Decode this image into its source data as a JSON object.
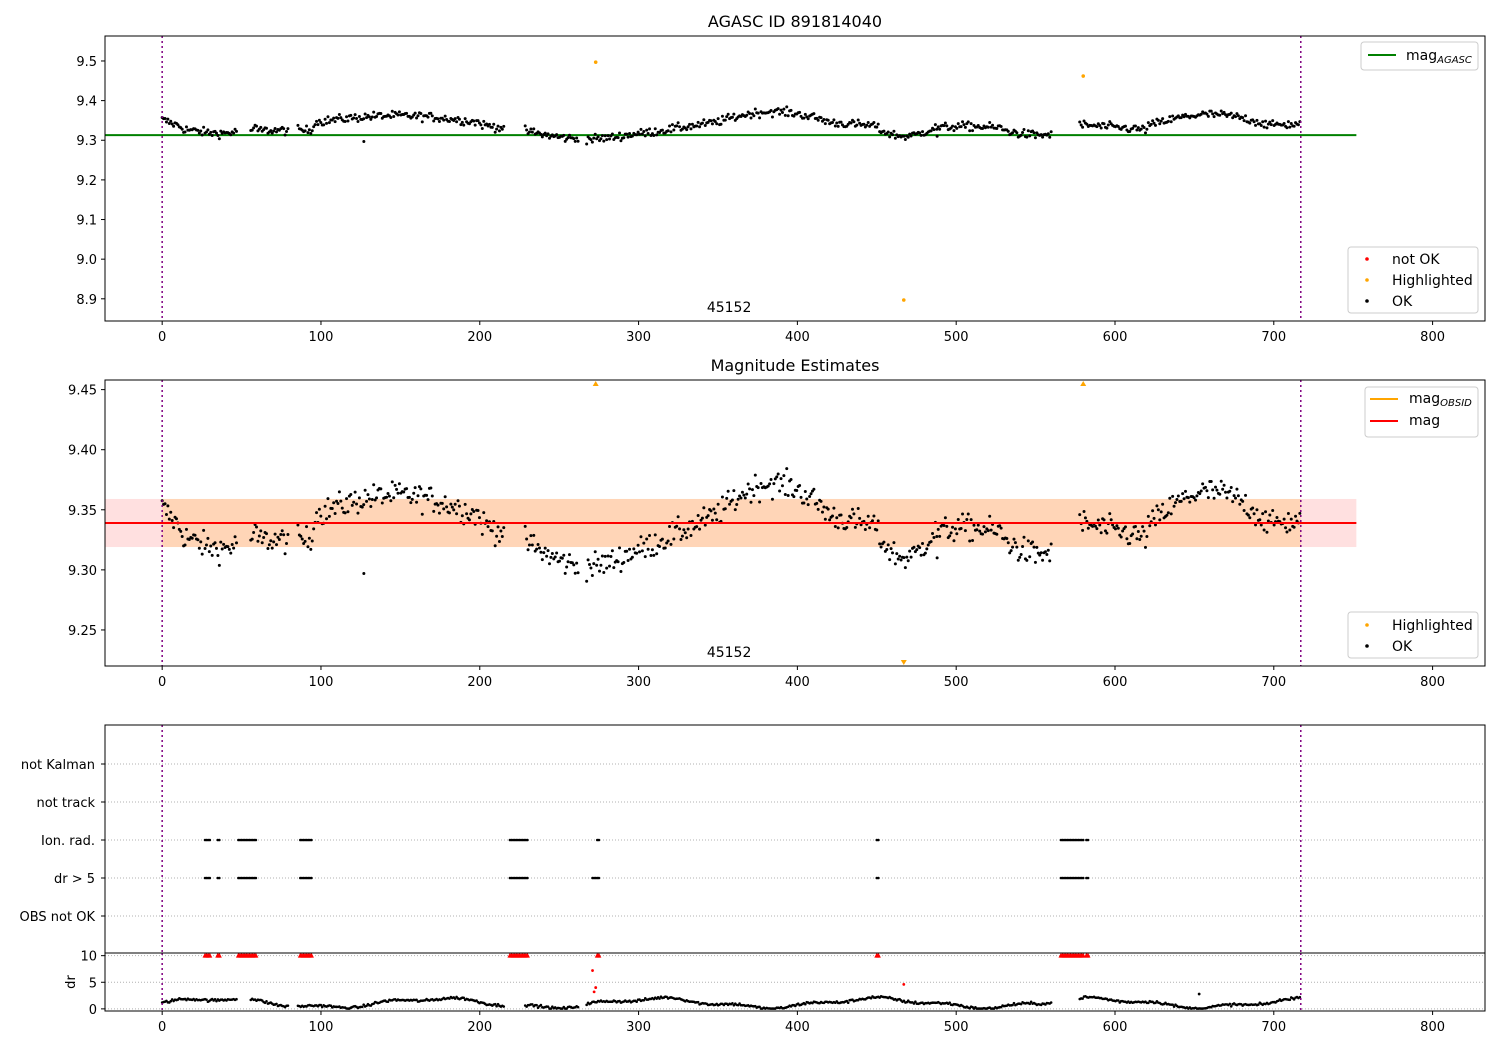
{
  "chart_data": [
    {
      "name": "agasc-panel",
      "type": "scatter",
      "title": "AGASC ID 891814040",
      "xlim": [
        -36,
        833
      ],
      "ylim": [
        8.844,
        9.563
      ],
      "x_ticks": [
        0,
        100,
        200,
        300,
        400,
        500,
        600,
        700,
        800
      ],
      "y_ticks": [
        8.9,
        9.0,
        9.1,
        9.2,
        9.3,
        9.4,
        9.5
      ],
      "y_tick_labels": [
        "8.9",
        "9.0",
        "9.1",
        "9.2",
        "9.3",
        "9.4",
        "9.5"
      ],
      "obsid_label": "45152",
      "obsid_label_x": 357,
      "obsid_boundaries": [
        0,
        717
      ],
      "reference_line": {
        "name": "mag_AGASC",
        "y": 9.313,
        "x_range": [
          -36,
          752
        ],
        "color": "#008000"
      },
      "highlighted_points": [
        {
          "x": 273,
          "y": 9.497
        },
        {
          "x": 580,
          "y": 9.462
        },
        {
          "x": 467,
          "y": 8.897
        }
      ],
      "ok_series_description": "black points, mag trend",
      "legend_lines": [
        {
          "label": "mag",
          "sub": "AGASC",
          "color": "#008000"
        }
      ],
      "legend_points": [
        {
          "label": "not OK",
          "color": "#ff0000"
        },
        {
          "label": "Highlighted",
          "color": "#ffa500"
        },
        {
          "label": "OK",
          "color": "#000000"
        }
      ]
    },
    {
      "name": "estimates-panel",
      "type": "scatter",
      "title": "Magnitude Estimates",
      "xlim": [
        -36,
        833
      ],
      "ylim": [
        9.22,
        9.458
      ],
      "x_ticks": [
        0,
        100,
        200,
        300,
        400,
        500,
        600,
        700,
        800
      ],
      "y_ticks": [
        9.25,
        9.3,
        9.35,
        9.4,
        9.45
      ],
      "y_tick_labels": [
        "9.25",
        "9.30",
        "9.35",
        "9.40",
        "9.45"
      ],
      "obsid_label": "45152",
      "obsid_label_x": 357,
      "obsid_boundaries": [
        0,
        717
      ],
      "mag_line": {
        "y": 9.339,
        "color": "#ff0000"
      },
      "mag_band": {
        "y_low": 9.319,
        "y_high": 9.359,
        "x_range": [
          -36,
          752
        ]
      },
      "obsid_band": {
        "y_low": 9.319,
        "y_high": 9.359,
        "x_range": [
          0,
          717
        ]
      },
      "highlighted_markers": [
        {
          "x": 273,
          "direction": "up"
        },
        {
          "x": 580,
          "direction": "up"
        },
        {
          "x": 467,
          "direction": "down"
        }
      ],
      "legend_lines": [
        {
          "label": "mag",
          "sub": "OBSID",
          "color": "#ffa500"
        },
        {
          "label": "mag",
          "sub": "",
          "color": "#ff0000"
        }
      ],
      "legend_points": [
        {
          "label": "Highlighted",
          "color": "#ffa500"
        },
        {
          "label": "OK",
          "color": "#000000"
        }
      ]
    },
    {
      "name": "flags-panel",
      "type": "scatter",
      "categories": [
        "not Kalman",
        "not track",
        "Ion. rad.",
        "dr > 5",
        "OBS not OK"
      ],
      "xlim": [
        -36,
        833
      ],
      "obsid_boundaries": [
        0,
        717
      ],
      "flag_clusters": {
        "Ion. rad.": [
          [
            27,
            30
          ],
          [
            35,
            36
          ],
          [
            48,
            59
          ],
          [
            87,
            94
          ],
          [
            219,
            230
          ],
          [
            274,
            275
          ],
          [
            450,
            451
          ],
          [
            566,
            580
          ],
          [
            582,
            583
          ]
        ],
        "dr > 5": [
          [
            27,
            30
          ],
          [
            35,
            36
          ],
          [
            48,
            59
          ],
          [
            87,
            94
          ],
          [
            219,
            230
          ],
          [
            271,
            275
          ],
          [
            450,
            451
          ],
          [
            566,
            580
          ],
          [
            582,
            583
          ]
        ],
        "not Kalman": [],
        "not track": [],
        "OBS not OK": []
      }
    },
    {
      "name": "dr-panel",
      "type": "scatter",
      "ylabel": "dr",
      "xlim": [
        -36,
        833
      ],
      "ylim": [
        -0.4,
        10.5
      ],
      "x_ticks": [
        0,
        100,
        200,
        300,
        400,
        500,
        600,
        700,
        800
      ],
      "y_ticks": [
        0,
        5,
        10
      ],
      "y_tick_labels": [
        "0",
        "5",
        "10"
      ],
      "obsid_boundaries": [
        0,
        717
      ],
      "clipped_points_red": [
        [
          27,
          30
        ],
        [
          35,
          36
        ],
        [
          48,
          59
        ],
        [
          87,
          94
        ],
        [
          219,
          230
        ],
        [
          274,
          275
        ],
        [
          450,
          451
        ],
        [
          566,
          580
        ],
        [
          582,
          583
        ]
      ],
      "highlighted_points_red": [
        {
          "x": 271,
          "y": 7.2
        },
        {
          "x": 272,
          "y": 3.2
        },
        {
          "x": 273,
          "y": 4.0
        },
        {
          "x": 467,
          "y": 4.6
        }
      ],
      "outlier_black": [
        {
          "x": 653,
          "y": 2.8
        }
      ]
    }
  ]
}
